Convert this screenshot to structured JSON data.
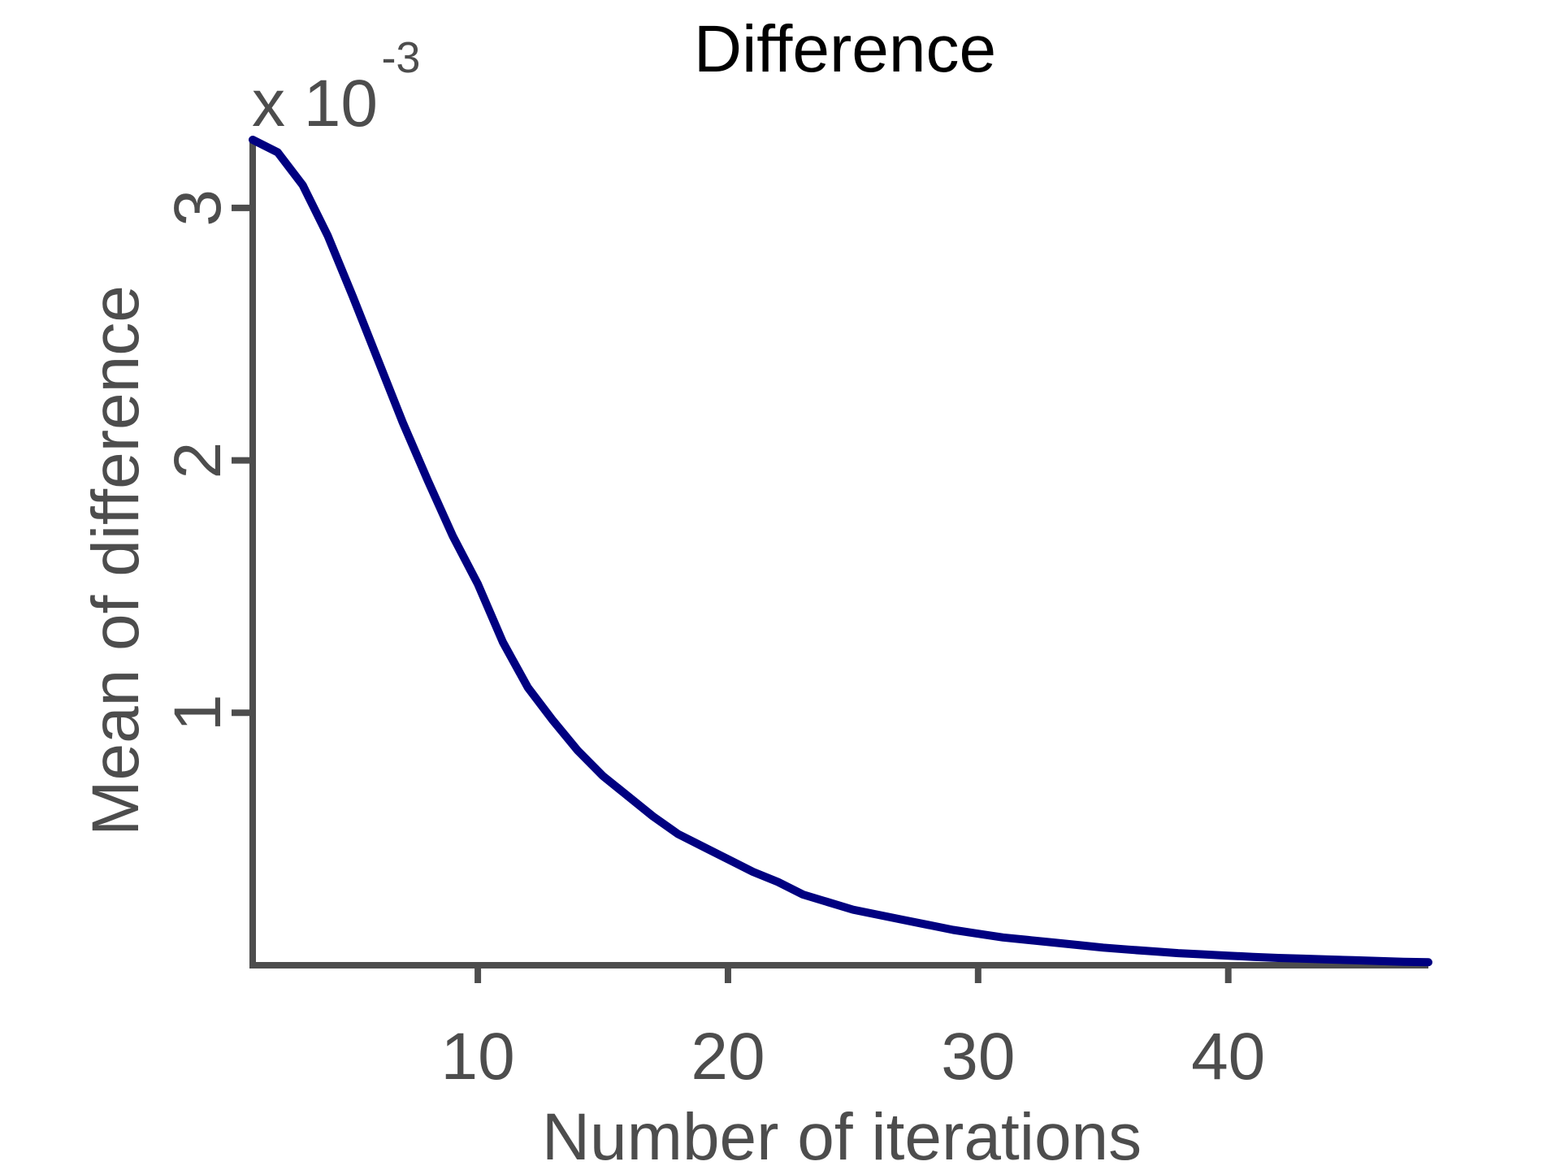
{
  "chart_data": {
    "type": "line",
    "title": "Difference",
    "xlabel": "Number of iterations",
    "ylabel": "Mean of difference",
    "y_multiplier": {
      "base": "x 10",
      "exponent": "-3"
    },
    "xlim": [
      1,
      48
    ],
    "ylim": [
      0,
      3.27
    ],
    "xticks": [
      10,
      20,
      30,
      40
    ],
    "yticks": [
      1,
      2,
      3
    ],
    "xtick_labels": [
      "10",
      "20",
      "30",
      "40"
    ],
    "ytick_labels": [
      "1",
      "2",
      "3"
    ],
    "grid": false,
    "legend": false,
    "axis_color": "#4d4d4d",
    "series": [
      {
        "color": "#000080",
        "x": [
          1,
          2,
          3,
          4,
          5,
          6,
          7,
          8,
          9,
          10,
          11,
          12,
          13,
          14,
          15,
          16,
          17,
          18,
          19,
          20,
          21,
          22,
          23,
          24,
          25,
          26,
          27,
          28,
          29,
          30,
          31,
          32,
          33,
          34,
          35,
          36,
          37,
          38,
          39,
          40,
          41,
          42,
          43,
          44,
          45,
          46,
          47,
          48
        ],
        "y": [
          3.27,
          3.22,
          3.09,
          2.89,
          2.65,
          2.4,
          2.15,
          1.92,
          1.7,
          1.51,
          1.28,
          1.1,
          0.97,
          0.85,
          0.75,
          0.67,
          0.59,
          0.52,
          0.47,
          0.42,
          0.37,
          0.33,
          0.28,
          0.25,
          0.22,
          0.2,
          0.18,
          0.16,
          0.14,
          0.125,
          0.11,
          0.1,
          0.09,
          0.08,
          0.07,
          0.062,
          0.055,
          0.048,
          0.043,
          0.038,
          0.033,
          0.029,
          0.026,
          0.023,
          0.02,
          0.017,
          0.014,
          0.012
        ]
      }
    ]
  }
}
